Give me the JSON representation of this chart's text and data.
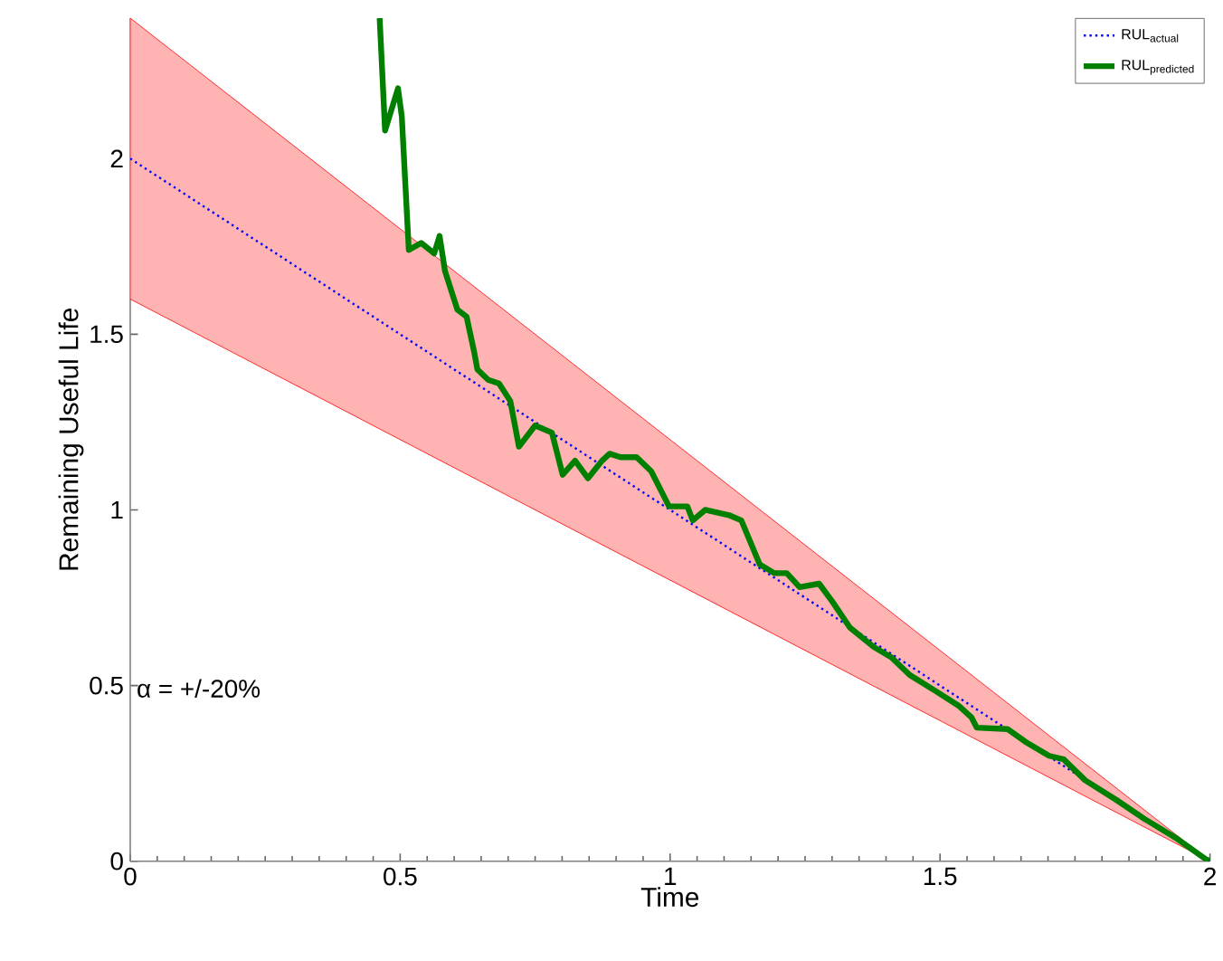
{
  "chart_data": {
    "type": "line",
    "xlabel": "Time",
    "ylabel": "Remaining Useful Life",
    "xlim": [
      0,
      2
    ],
    "ylim": [
      0,
      2.4
    ],
    "xticks": [
      0,
      0.5,
      1,
      1.5,
      2
    ],
    "yticks": [
      0,
      0.5,
      1,
      1.5,
      2
    ],
    "grid": false,
    "legend": "top right",
    "annotations": [
      "α = +/-20%"
    ],
    "series": [
      {
        "name": "\\mathrm{RUL}_{\\mathrm{actual}}",
        "color": "#0000ff",
        "line_style": "dotted",
        "x": [
          0,
          2
        ],
        "values": [
          2,
          0
        ],
        "lower": [
          1.6,
          0
        ],
        "upper": [
          2.4,
          0
        ]
      },
      {
        "name": "\\mathrm{RUL}_{\\mathrm{predicted}}",
        "color": "#007f00",
        "line_style": "solid",
        "x": [
          0.462,
          0.472,
          0.496,
          0.503,
          0.516,
          0.539,
          0.563,
          0.573,
          0.583,
          0.606,
          0.623,
          0.637,
          0.643,
          0.663,
          0.683,
          0.704,
          0.72,
          0.75,
          0.781,
          0.801,
          0.824,
          0.848,
          0.874,
          0.888,
          0.908,
          0.938,
          0.965,
          0.998,
          1.032,
          1.042,
          1.065,
          1.109,
          1.132,
          1.166,
          1.193,
          1.216,
          1.24,
          1.276,
          1.3,
          1.333,
          1.377,
          1.41,
          1.444,
          1.491,
          1.534,
          1.558,
          1.568,
          1.625,
          1.658,
          1.702,
          1.729,
          1.769,
          1.826,
          1.879,
          1.936,
          1.993,
          2
        ],
        "values": [
          2.4,
          2.08,
          2.2,
          2.12,
          1.74,
          1.76,
          1.73,
          1.78,
          1.68,
          1.57,
          1.55,
          1.45,
          1.4,
          1.37,
          1.36,
          1.31,
          1.18,
          1.24,
          1.22,
          1.1,
          1.14,
          1.09,
          1.14,
          1.16,
          1.15,
          1.15,
          1.11,
          1.01,
          1.01,
          0.97,
          1.0,
          0.985,
          0.97,
          0.845,
          0.82,
          0.82,
          0.78,
          0.79,
          0.74,
          0.665,
          0.61,
          0.58,
          0.53,
          0.485,
          0.443,
          0.41,
          0.38,
          0.376,
          0.34,
          0.3,
          0.29,
          0.23,
          0.175,
          0.12,
          0.067,
          0.005,
          0
        ]
      }
    ]
  }
}
